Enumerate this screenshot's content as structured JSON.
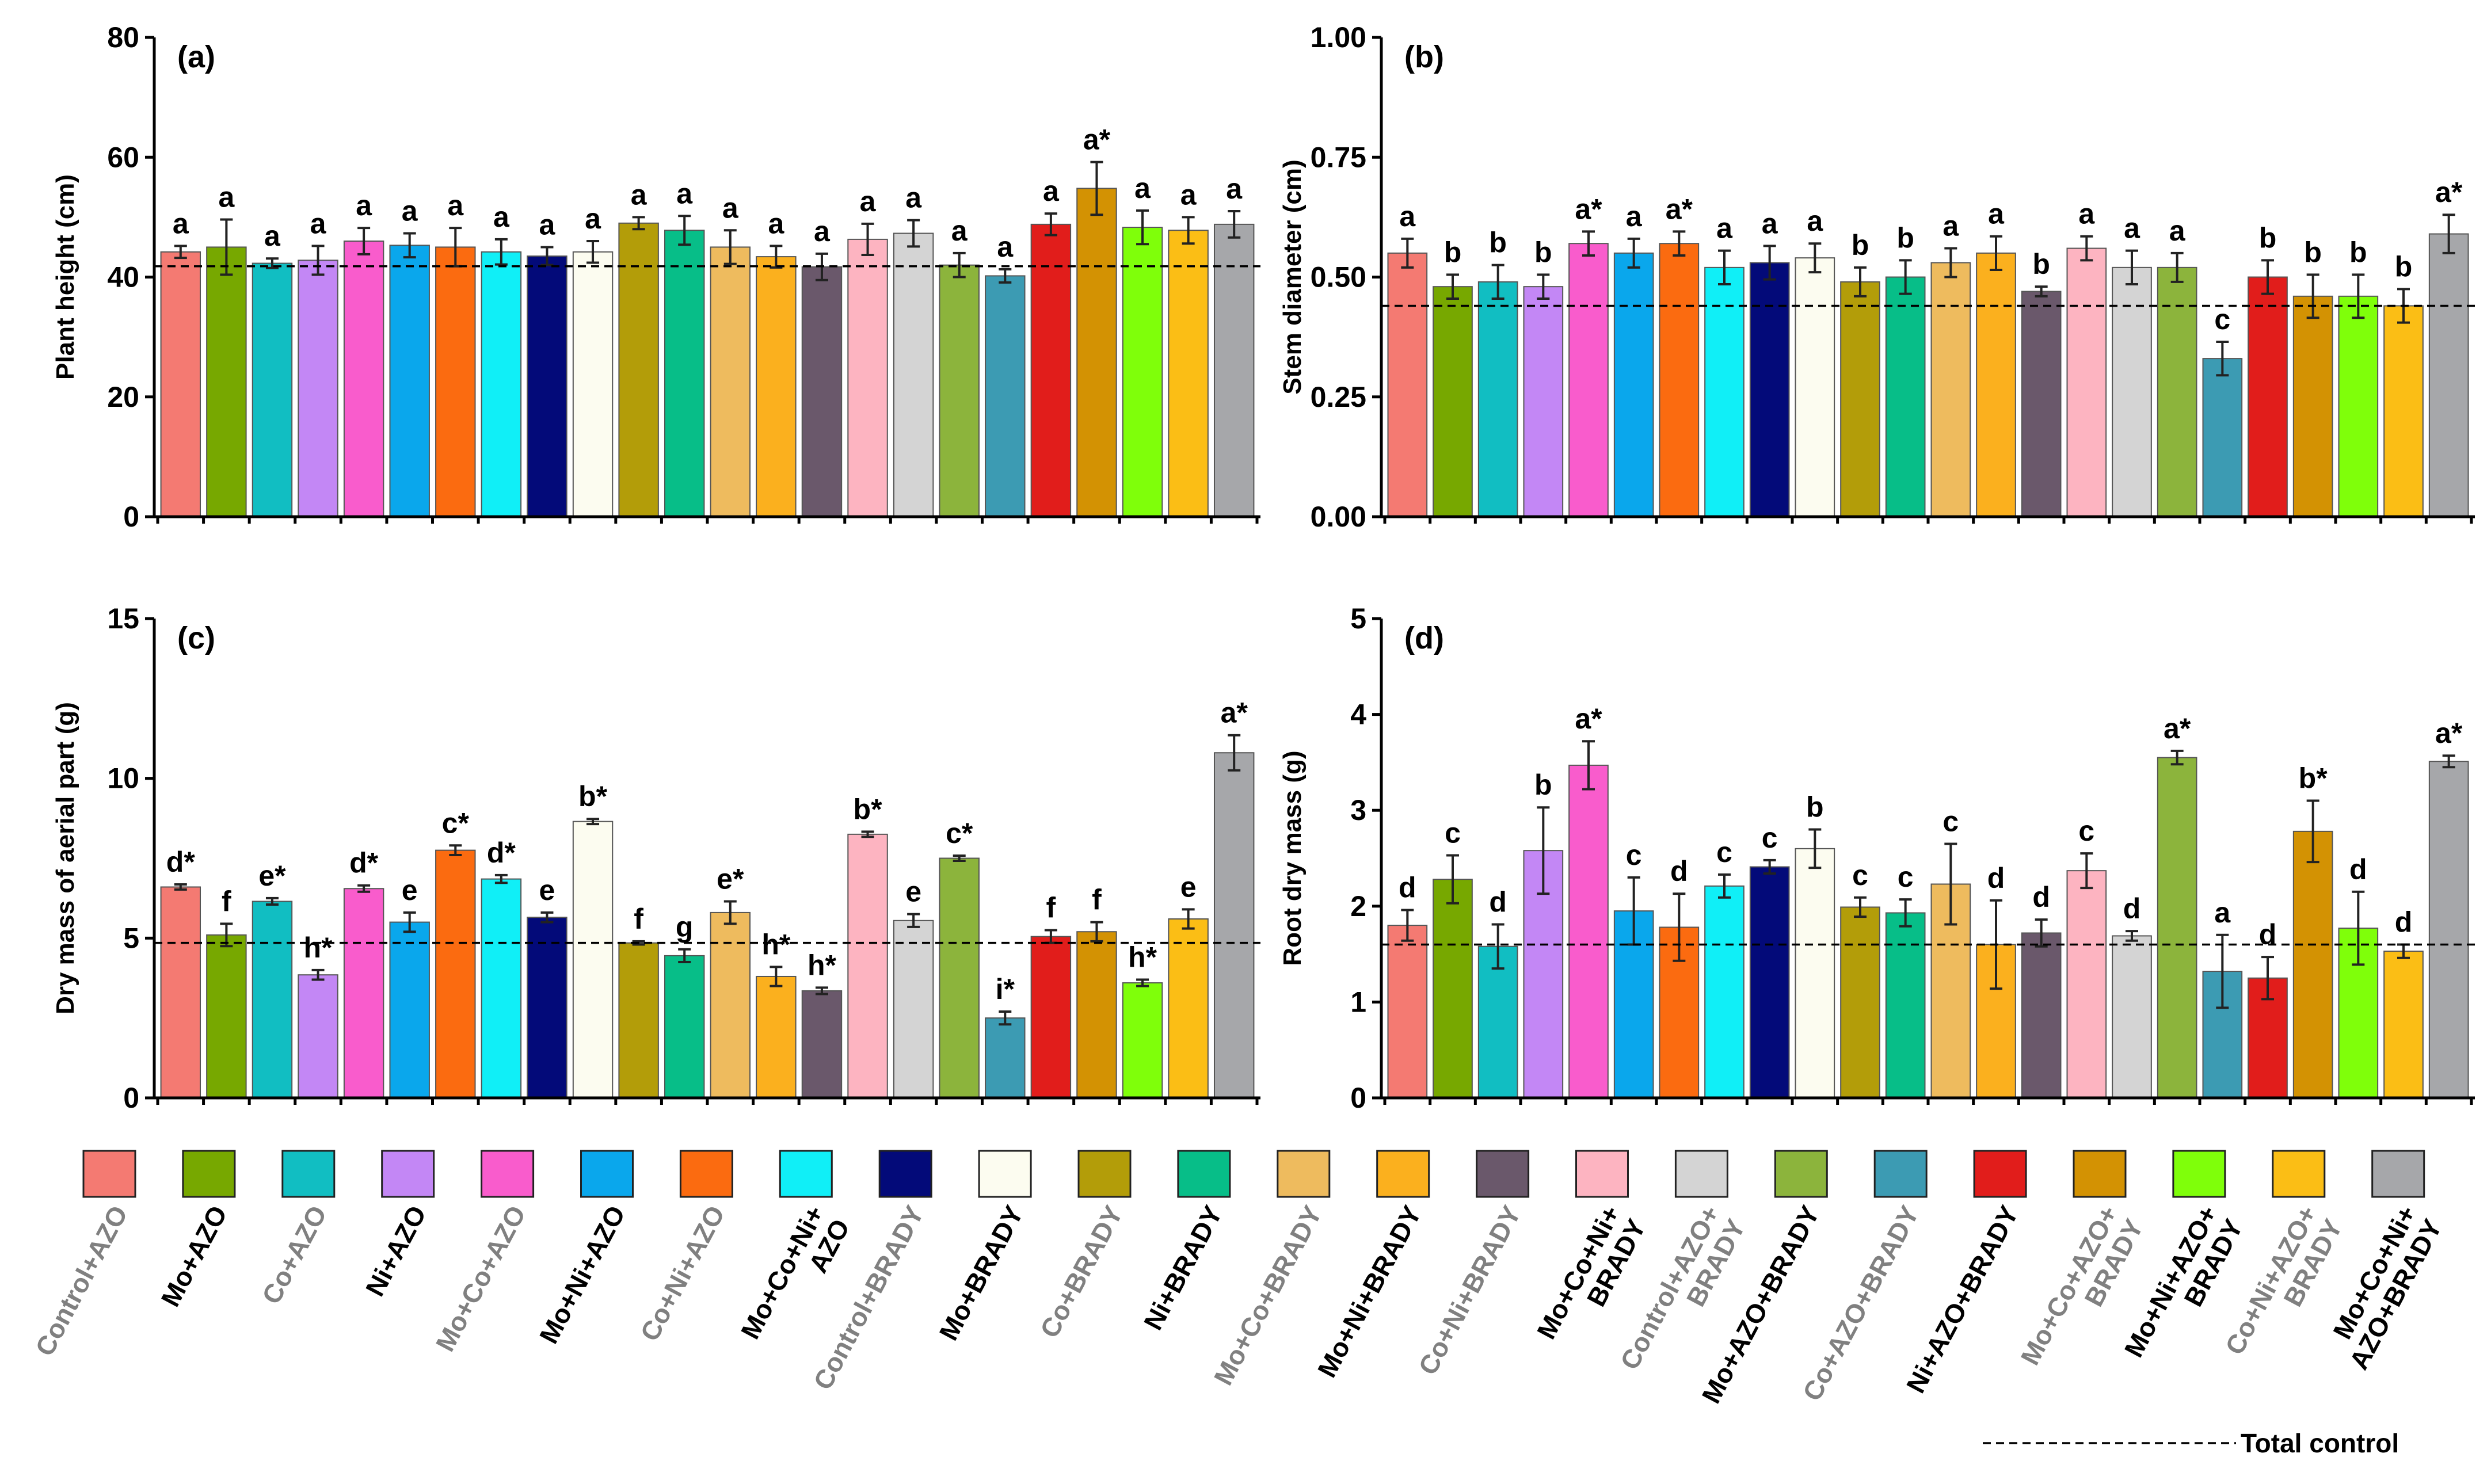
{
  "legend": {
    "treatments": [
      {
        "label": [
          "Control+AZO"
        ],
        "color": "#F47A72",
        "label_color": "#808080"
      },
      {
        "label": [
          "Mo+AZO"
        ],
        "color": "#77A800",
        "label_color": "#000000"
      },
      {
        "label": [
          "Co+AZO"
        ],
        "color": "#11BEC2",
        "label_color": "#808080"
      },
      {
        "label": [
          "Ni+AZO"
        ],
        "color": "#C387F5",
        "label_color": "#000000"
      },
      {
        "label": [
          "Mo+Co+AZO"
        ],
        "color": "#F95CCC",
        "label_color": "#808080"
      },
      {
        "label": [
          "Mo+Ni+AZO"
        ],
        "color": "#0AA7EC",
        "label_color": "#000000"
      },
      {
        "label": [
          "Co+Ni+AZO"
        ],
        "color": "#FB6B10",
        "label_color": "#808080"
      },
      {
        "label": [
          "Mo+Co+Ni+",
          "AZO"
        ],
        "color": "#10EFF7",
        "label_color": "#000000"
      },
      {
        "label": [
          "Control+BRADY"
        ],
        "color": "#030A79",
        "label_color": "#808080"
      },
      {
        "label": [
          "Mo+BRADY"
        ],
        "color": "#FCFCF0",
        "label_color": "#000000"
      },
      {
        "label": [
          "Co+BRADY"
        ],
        "color": "#B39D09",
        "label_color": "#808080"
      },
      {
        "label": [
          "Ni+BRADY"
        ],
        "color": "#07BE88",
        "label_color": "#000000"
      },
      {
        "label": [
          "Mo+Co+BRADY"
        ],
        "color": "#EEBB5E",
        "label_color": "#808080"
      },
      {
        "label": [
          "Mo+Ni+BRADY"
        ],
        "color": "#FBB01E",
        "label_color": "#000000"
      },
      {
        "label": [
          "Co+Ni+BRADY"
        ],
        "color": "#6A586B",
        "label_color": "#808080"
      },
      {
        "label": [
          "Mo+Co+Ni+",
          "BRADY"
        ],
        "color": "#FDB4C1",
        "label_color": "#000000"
      },
      {
        "label": [
          "Control+AZO+",
          "BRADY"
        ],
        "color": "#D4D4D4",
        "label_color": "#808080"
      },
      {
        "label": [
          "Mo+AZO+BRADY"
        ],
        "color": "#8CB43C",
        "label_color": "#000000"
      },
      {
        "label": [
          "Co+AZO+BRADY"
        ],
        "color": "#3C9BB3",
        "label_color": "#808080"
      },
      {
        "label": [
          "Ni+AZO+BRADY"
        ],
        "color": "#E11D1B",
        "label_color": "#000000"
      },
      {
        "label": [
          "Mo+Co+AZO+",
          "BRADY"
        ],
        "color": "#D39203",
        "label_color": "#808080"
      },
      {
        "label": [
          "Mo+Ni+AZO+",
          "BRADY"
        ],
        "color": "#7FFF0A",
        "label_color": "#000000"
      },
      {
        "label": [
          "Co+Ni+AZO+",
          "BRADY"
        ],
        "color": "#FBBE15",
        "label_color": "#808080"
      },
      {
        "label": [
          "Mo+Co+Ni+",
          "AZO+BRADY"
        ],
        "color": "#A6A7AA",
        "label_color": "#000000"
      }
    ],
    "total_control_label": "Total control"
  },
  "chart_data": [
    {
      "panel": "(a)",
      "type": "bar",
      "ylabel": "Plant height (cm)",
      "ylim": [
        0,
        80
      ],
      "yticks": [
        "0",
        "20",
        "40",
        "60",
        "80"
      ],
      "ytick_values": [
        0,
        20,
        40,
        60,
        80
      ],
      "reference_line": 41.8,
      "values": [
        44.2,
        45.0,
        42.3,
        42.8,
        46.0,
        45.3,
        45.0,
        44.2,
        43.5,
        44.2,
        49.0,
        47.8,
        45.0,
        43.4,
        41.7,
        46.3,
        47.3,
        42.0,
        40.2,
        48.8,
        54.8,
        48.3,
        47.8,
        48.8
      ],
      "errors": [
        1.0,
        4.6,
        0.8,
        2.4,
        2.2,
        2.0,
        3.2,
        2.1,
        1.5,
        1.8,
        1.0,
        2.4,
        2.8,
        1.8,
        2.2,
        2.6,
        2.2,
        2.0,
        1.1,
        1.8,
        4.4,
        2.8,
        2.2,
        2.2
      ],
      "letters": [
        "a",
        "a",
        "a",
        "a",
        "a",
        "a",
        "a",
        "a",
        "a",
        "a",
        "a",
        "a",
        "a",
        "a",
        "a",
        "a",
        "a",
        "a",
        "a",
        "a",
        "a*",
        "a",
        "a",
        "a"
      ]
    },
    {
      "panel": "(b)",
      "type": "bar",
      "ylabel": "Stem diameter (cm)",
      "ylim": [
        0,
        1.0
      ],
      "yticks": [
        "0.00",
        "0.25",
        "0.50",
        "0.75",
        "1.00"
      ],
      "ytick_values": [
        0,
        0.25,
        0.5,
        0.75,
        1.0
      ],
      "reference_line": 0.44,
      "values": [
        0.55,
        0.48,
        0.49,
        0.48,
        0.57,
        0.55,
        0.57,
        0.52,
        0.53,
        0.54,
        0.49,
        0.5,
        0.53,
        0.55,
        0.47,
        0.56,
        0.52,
        0.52,
        0.33,
        0.5,
        0.46,
        0.46,
        0.44,
        0.59
      ],
      "errors": [
        0.03,
        0.025,
        0.035,
        0.025,
        0.025,
        0.03,
        0.025,
        0.035,
        0.035,
        0.03,
        0.03,
        0.035,
        0.03,
        0.035,
        0.01,
        0.025,
        0.035,
        0.03,
        0.035,
        0.035,
        0.045,
        0.045,
        0.035,
        0.04
      ],
      "letters": [
        "a",
        "b",
        "b",
        "b",
        "a*",
        "a",
        "a*",
        "a",
        "a",
        "a",
        "b",
        "b",
        "a",
        "a",
        "b",
        "a",
        "a",
        "a",
        "c",
        "b",
        "b",
        "b",
        "b",
        "a*"
      ]
    },
    {
      "panel": "(c)",
      "type": "bar",
      "ylabel": "Dry mass of aerial part (g)",
      "ylim": [
        0,
        15
      ],
      "yticks": [
        "0",
        "5",
        "10",
        "15"
      ],
      "ytick_values": [
        0,
        5,
        10,
        15
      ],
      "reference_line": 4.85,
      "values": [
        6.6,
        5.1,
        6.15,
        3.85,
        6.55,
        5.5,
        7.75,
        6.85,
        5.65,
        8.65,
        4.85,
        4.45,
        5.8,
        3.8,
        3.35,
        8.25,
        5.55,
        7.5,
        2.5,
        5.05,
        5.2,
        3.6,
        5.6,
        10.8
      ],
      "errors": [
        0.08,
        0.35,
        0.1,
        0.15,
        0.1,
        0.3,
        0.15,
        0.12,
        0.15,
        0.08,
        0.05,
        0.2,
        0.35,
        0.3,
        0.1,
        0.08,
        0.2,
        0.08,
        0.2,
        0.2,
        0.3,
        0.1,
        0.3,
        0.55
      ],
      "letters": [
        "d*",
        "f",
        "e*",
        "h*",
        "d*",
        "e",
        "c*",
        "d*",
        "e",
        "b*",
        "f",
        "g",
        "e*",
        "h*",
        "h*",
        "b*",
        "e",
        "c*",
        "i*",
        "f",
        "f",
        "h*",
        "e",
        "a*"
      ]
    },
    {
      "panel": "(d)",
      "type": "bar",
      "ylabel": "Root dry mass  (g)",
      "ylim": [
        0,
        5
      ],
      "yticks": [
        "0",
        "1",
        "2",
        "3",
        "4",
        "5"
      ],
      "ytick_values": [
        0,
        1,
        2,
        3,
        4,
        5
      ],
      "reference_line": 1.6,
      "values": [
        1.8,
        2.28,
        1.58,
        2.58,
        3.47,
        1.95,
        1.78,
        2.21,
        2.41,
        2.6,
        1.99,
        1.93,
        2.23,
        1.6,
        1.72,
        2.37,
        1.69,
        3.55,
        1.32,
        1.25,
        2.78,
        1.77,
        1.53,
        3.51
      ],
      "errors": [
        0.16,
        0.25,
        0.23,
        0.45,
        0.25,
        0.35,
        0.35,
        0.12,
        0.07,
        0.2,
        0.1,
        0.14,
        0.42,
        0.46,
        0.14,
        0.18,
        0.05,
        0.07,
        0.38,
        0.22,
        0.32,
        0.38,
        0.07,
        0.06
      ],
      "letters": [
        "d",
        "c",
        "d",
        "b",
        "a*",
        "c",
        "d",
        "c",
        "c",
        "b",
        "c",
        "c",
        "c",
        "d",
        "d",
        "c",
        "d",
        "a*",
        "a",
        "d",
        "b*",
        "d",
        "d",
        "a*"
      ]
    }
  ]
}
